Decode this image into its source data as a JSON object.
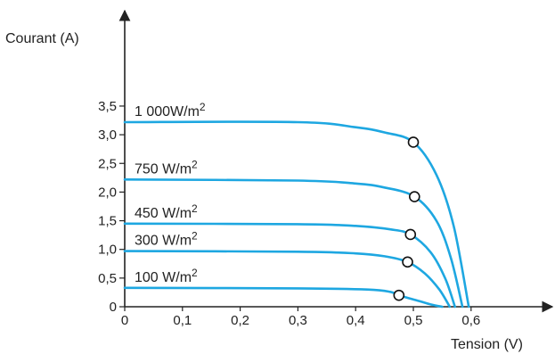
{
  "chart_data": {
    "type": "line",
    "xlabel": "Tension (V)",
    "ylabel": "Courant (A)",
    "xlim": [
      0,
      0.7
    ],
    "ylim": [
      0,
      3.9
    ],
    "x_ticks": [
      "0",
      "0,1",
      "0,2",
      "0,3",
      "0,4",
      "0,5",
      "0,6"
    ],
    "y_ticks": [
      "0",
      "0,5",
      "1,0",
      "1,5",
      "2,0",
      "2,5",
      "3,0",
      "3,5"
    ],
    "grid": false,
    "legend": "none",
    "series": [
      {
        "name": "1 000W/m2",
        "label_main": "1 000W/m",
        "label_sup": "2",
        "isc": 3.22,
        "voc": 0.596,
        "mpp": {
          "x": 0.5,
          "y": 2.87
        },
        "points": [
          [
            0,
            3.22
          ],
          [
            0.3,
            3.22
          ],
          [
            0.4,
            3.13
          ],
          [
            0.45,
            3.04
          ],
          [
            0.5,
            2.87
          ],
          [
            0.54,
            2.3
          ],
          [
            0.57,
            1.4
          ],
          [
            0.596,
            0
          ]
        ]
      },
      {
        "name": "750 W/m2",
        "label_main": "750 W/m",
        "label_sup": "2",
        "isc": 2.22,
        "voc": 0.585,
        "mpp": {
          "x": 0.502,
          "y": 1.92
        },
        "points": [
          [
            0,
            2.22
          ],
          [
            0.3,
            2.2
          ],
          [
            0.4,
            2.15
          ],
          [
            0.45,
            2.08
          ],
          [
            0.502,
            1.92
          ],
          [
            0.54,
            1.5
          ],
          [
            0.565,
            0.85
          ],
          [
            0.585,
            0
          ]
        ]
      },
      {
        "name": "450 W/m2",
        "label_main": "450 W/m",
        "label_sup": "2",
        "isc": 1.45,
        "voc": 0.572,
        "mpp": {
          "x": 0.495,
          "y": 1.26
        },
        "points": [
          [
            0,
            1.45
          ],
          [
            0.3,
            1.44
          ],
          [
            0.4,
            1.41
          ],
          [
            0.46,
            1.35
          ],
          [
            0.495,
            1.26
          ],
          [
            0.53,
            0.95
          ],
          [
            0.555,
            0.5
          ],
          [
            0.572,
            0
          ]
        ]
      },
      {
        "name": "300 W/m2",
        "label_main": "300 W/m",
        "label_sup": "2",
        "isc": 0.97,
        "voc": 0.563,
        "mpp": {
          "x": 0.49,
          "y": 0.78
        },
        "points": [
          [
            0,
            0.97
          ],
          [
            0.3,
            0.96
          ],
          [
            0.4,
            0.93
          ],
          [
            0.45,
            0.88
          ],
          [
            0.49,
            0.78
          ],
          [
            0.52,
            0.58
          ],
          [
            0.545,
            0.3
          ],
          [
            0.563,
            0
          ]
        ]
      },
      {
        "name": "100 W/m2",
        "label_main": "100 W/m",
        "label_sup": "2",
        "isc": 0.33,
        "voc": 0.55,
        "mpp": {
          "x": 0.475,
          "y": 0.2
        },
        "points": [
          [
            0,
            0.33
          ],
          [
            0.3,
            0.32
          ],
          [
            0.42,
            0.3
          ],
          [
            0.46,
            0.26
          ],
          [
            0.475,
            0.2
          ],
          [
            0.51,
            0.1
          ],
          [
            0.53,
            0.04
          ],
          [
            0.55,
            0
          ]
        ]
      }
    ],
    "colors": {
      "curve": "#1ea7e1",
      "axis": "#222222",
      "marker_fill": "#ffffff",
      "marker_stroke": "#111111"
    }
  }
}
